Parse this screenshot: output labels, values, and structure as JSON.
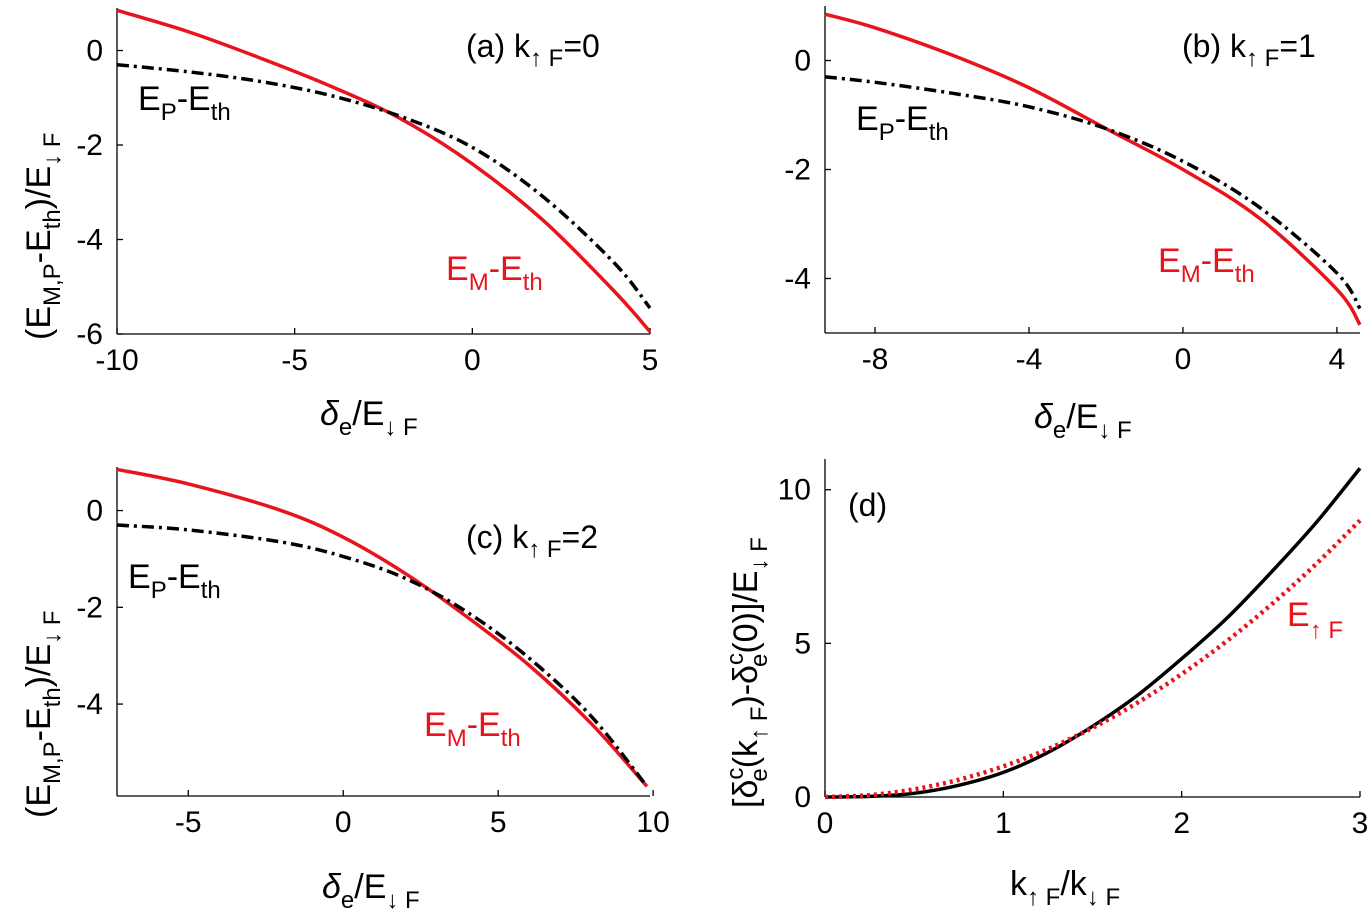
{
  "colors": {
    "M": "#e8141c",
    "P": "#000000",
    "d_solid": "#000000",
    "d_dotted": "#e8141c"
  },
  "chart_data": [
    {
      "type": "line",
      "panel_label": "(a) k",
      "panel_sub": "↑ F",
      "panel_value": "=0",
      "xlim": [
        -10,
        5
      ],
      "ylim": [
        -6,
        0.9
      ],
      "xticks": [
        -10,
        -5,
        0,
        5
      ],
      "xtick_labels": [
        "-10",
        "-5",
        "0",
        "5"
      ],
      "yticks": [
        -6,
        -4,
        -2,
        0
      ],
      "ytick_labels": [
        "-6",
        "-4",
        "-2",
        "0"
      ],
      "xlabel": {
        "sym": "δ",
        "sub1": "e",
        "mid": "/E",
        "sub2": "↓ F"
      },
      "ylabel": {
        "p1": "(E",
        "s1": "M,P",
        "p2": "-E",
        "s2": "th",
        "p3": ")/E",
        "s3": "↓ F"
      },
      "series": [
        {
          "name": "E_M-E_th",
          "x": [
            -10,
            -8,
            -6,
            -4,
            -2,
            0,
            2,
            4,
            5
          ],
          "y": [
            0.85,
            0.4,
            -0.15,
            -0.75,
            -1.45,
            -2.4,
            -3.6,
            -5.1,
            -5.95
          ]
        },
        {
          "name": "E_P-E_th",
          "x": [
            -10,
            -8,
            -6,
            -4,
            -2,
            0,
            2,
            4,
            5
          ],
          "y": [
            -0.3,
            -0.45,
            -0.65,
            -0.95,
            -1.4,
            -2.05,
            -3.1,
            -4.5,
            -5.45
          ]
        }
      ],
      "annotations": [
        {
          "main": "E",
          "sub": "P",
          "rest": "-E",
          "sub2": "th"
        },
        {
          "main": "E",
          "sub": "M",
          "rest": "-E",
          "sub2": "th"
        }
      ]
    },
    {
      "type": "line",
      "panel_label": "(b) k",
      "panel_sub": "↑ F",
      "panel_value": "=1",
      "xlim": [
        -9.3,
        4.6
      ],
      "ylim": [
        -5,
        1
      ],
      "xticks": [
        -8,
        -4,
        0,
        4
      ],
      "xtick_labels": [
        "-8",
        "-4",
        "0",
        "4"
      ],
      "yticks": [
        -4,
        -2,
        0
      ],
      "ytick_labels": [
        "-4",
        "-2",
        "0"
      ],
      "xlabel": {
        "sym": "δ",
        "sub1": "e",
        "mid": "/E",
        "sub2": "↓ F"
      },
      "series": [
        {
          "name": "E_M-E_th",
          "x": [
            -9.3,
            -8,
            -6,
            -4,
            -2,
            0,
            2,
            4,
            4.6
          ],
          "y": [
            0.85,
            0.6,
            0.1,
            -0.5,
            -1.25,
            -2.0,
            -2.9,
            -4.2,
            -4.85
          ]
        },
        {
          "name": "E_P-E_th",
          "x": [
            -9.3,
            -8,
            -6,
            -4,
            -2,
            0,
            2,
            4,
            4.6
          ],
          "y": [
            -0.3,
            -0.4,
            -0.6,
            -0.85,
            -1.25,
            -1.85,
            -2.7,
            -3.9,
            -4.55
          ]
        }
      ],
      "annotations": [
        {
          "main": "E",
          "sub": "P",
          "rest": "-E",
          "sub2": "th"
        },
        {
          "main": "E",
          "sub": "M",
          "rest": "-E",
          "sub2": "th"
        }
      ]
    },
    {
      "type": "line",
      "panel_label": "(c) k",
      "panel_sub": "↑ F",
      "panel_value": "=2",
      "xlim": [
        -7.3,
        9.9
      ],
      "ylim": [
        -5.9,
        0.9
      ],
      "xticks": [
        -5,
        0,
        5,
        10
      ],
      "xtick_labels": [
        "-5",
        "0",
        "5",
        "10"
      ],
      "yticks": [
        -4,
        -2,
        0
      ],
      "ytick_labels": [
        "-4",
        "-2",
        "0"
      ],
      "xlabel": {
        "sym": "δ",
        "sub1": "e",
        "mid": "/E",
        "sub2": "↓ F"
      },
      "ylabel": {
        "p1": "(E",
        "s1": "M,P",
        "p2": "-E",
        "s2": "th",
        "p3": ")/E",
        "s3": "↓ F"
      },
      "series": [
        {
          "name": "E_M-E_th",
          "x": [
            -7.3,
            -5,
            -2,
            0,
            2,
            4,
            6,
            8,
            9.8
          ],
          "y": [
            0.85,
            0.55,
            0.0,
            -0.55,
            -1.3,
            -2.2,
            -3.2,
            -4.4,
            -5.7
          ]
        },
        {
          "name": "E_P-E_th",
          "x": [
            -7.3,
            -5,
            -2,
            0,
            2,
            4,
            6,
            8,
            9.8
          ],
          "y": [
            -0.3,
            -0.4,
            -0.65,
            -0.95,
            -1.4,
            -2.1,
            -3.05,
            -4.25,
            -5.7
          ]
        }
      ],
      "annotations": [
        {
          "main": "E",
          "sub": "P",
          "rest": "-E",
          "sub2": "th"
        },
        {
          "main": "E",
          "sub": "M",
          "rest": "-E",
          "sub2": "th"
        }
      ]
    },
    {
      "type": "line",
      "panel_label": "(d)",
      "xlim": [
        0,
        3
      ],
      "ylim": [
        0,
        11
      ],
      "xticks": [
        0,
        1,
        2,
        3
      ],
      "xtick_labels": [
        "0",
        "1",
        "2",
        "3"
      ],
      "yticks": [
        0,
        5,
        10
      ],
      "ytick_labels": [
        "0",
        "5",
        "10"
      ],
      "xlabel_d": {
        "a": "k",
        "s1": "↑ F",
        "b": "/k",
        "s2": "↓ F"
      },
      "ylabel_d": {
        "a": "[δ",
        "sup1": "c",
        "sub1": "e",
        "b": "(k",
        "sub2": "↑ F",
        "c": ")-δ",
        "sup2": "c",
        "sub3": "e",
        "d": "(0)]/E",
        "sub4": "↓ F"
      },
      "series": [
        {
          "name": "solid",
          "x": [
            0,
            0.25,
            0.5,
            0.75,
            1,
            1.25,
            1.5,
            1.75,
            2,
            2.25,
            2.5,
            2.75,
            3
          ],
          "y": [
            0,
            0.02,
            0.12,
            0.38,
            0.8,
            1.45,
            2.3,
            3.3,
            4.5,
            5.8,
            7.3,
            8.9,
            10.7
          ]
        },
        {
          "name": "E_↑F",
          "x": [
            0,
            0.25,
            0.5,
            0.75,
            1,
            1.25,
            1.5,
            1.75,
            2,
            2.25,
            2.5,
            2.75,
            3
          ],
          "y": [
            0,
            0.06,
            0.25,
            0.56,
            1.0,
            1.56,
            2.25,
            3.06,
            4.0,
            5.06,
            6.25,
            7.56,
            9.0
          ]
        }
      ],
      "annotations": [
        {
          "main": "E",
          "sub": "↑ F"
        }
      ]
    }
  ]
}
